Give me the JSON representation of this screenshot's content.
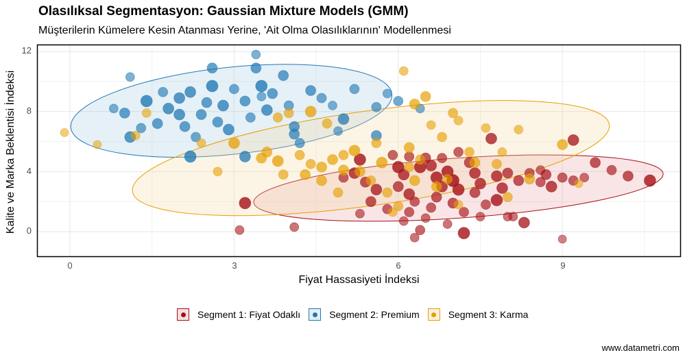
{
  "header": {
    "title": "Olasılıksal Segmentasyon: Gaussian Mixture Models (GMM)",
    "subtitle": "Müşterilerin Kümelere Kesin Atanması Yerine, 'Ait Olma Olasılıklarının' Modellenmesi"
  },
  "axes": {
    "xlabel": "Fiyat Hassasiyeti İndeksi",
    "ylabel": "Kalite ve Marka Beklentisi İndeksi",
    "xticks": [
      "0",
      "3",
      "6",
      "9"
    ],
    "yticks": [
      "0",
      "4",
      "8",
      "12"
    ]
  },
  "legend": {
    "items": [
      {
        "label": "Segment 1: Fiyat Odaklı",
        "color": "#A50F15",
        "fill": "#F6E0E1"
      },
      {
        "label": "Segment 2: Premium",
        "color": "#1F78B4",
        "fill": "#E6EEF6"
      },
      {
        "label": "Segment 3: Karma",
        "color": "#E69F00",
        "fill": "#FCF1DE"
      }
    ]
  },
  "footer": {
    "source": "www.datametri.com"
  },
  "chart_data": {
    "type": "scatter",
    "title": "Olasılıksal Segmentasyon: Gaussian Mixture Models (GMM)",
    "subtitle": "Müşterilerin Kümelere Kesin Atanması Yerine, 'Ait Olma Olasılıklarının' Modellenmesi",
    "xlabel": "Fiyat Hassasiyeti İndeksi",
    "ylabel": "Kalite ve Marka Beklentisi İndeksi",
    "xlim": [
      -0.6,
      11.2
    ],
    "ylim": [
      -1.7,
      12.4
    ],
    "xticks": [
      0,
      3,
      6,
      9
    ],
    "yticks": [
      0,
      4,
      8,
      12
    ],
    "grid": true,
    "legend_position": "bottom",
    "point_size_encodes": "membership probability (larger / more opaque = higher)",
    "ellipses": [
      {
        "segment": "Segment 1: Fiyat Odaklı",
        "cx": 7.1,
        "cy": 2.9,
        "rx": 3.75,
        "ry": 2.0,
        "angle_deg": -4,
        "color": "#A50F15"
      },
      {
        "segment": "Segment 2: Premium",
        "cx": 2.95,
        "cy": 8.05,
        "rx": 2.95,
        "ry": 2.9,
        "angle_deg": -6,
        "color": "#1F78B4"
      },
      {
        "segment": "Segment 3: Karma",
        "cx": 5.5,
        "cy": 4.9,
        "rx": 4.4,
        "ry": 3.15,
        "angle_deg": -8,
        "color": "#E69F00"
      }
    ],
    "series": [
      {
        "name": "Segment 1: Fiyat Odaklı",
        "color": "#A50F15",
        "points": [
          [
            3.2,
            1.9,
            0.9
          ],
          [
            3.1,
            0.1,
            0.5
          ],
          [
            4.1,
            0.3,
            0.5
          ],
          [
            5.3,
            4.8,
            0.9
          ],
          [
            5.2,
            3.9,
            0.8
          ],
          [
            5.4,
            3.3,
            0.7
          ],
          [
            5.6,
            2.8,
            0.8
          ],
          [
            5.5,
            2.0,
            0.7
          ],
          [
            5.3,
            1.2,
            0.5
          ],
          [
            5.8,
            1.5,
            0.6
          ],
          [
            6.0,
            4.3,
            0.9
          ],
          [
            6.1,
            3.8,
            0.8
          ],
          [
            6.0,
            3.0,
            0.7
          ],
          [
            6.2,
            2.5,
            0.8
          ],
          [
            6.3,
            2.0,
            0.6
          ],
          [
            6.2,
            1.3,
            0.6
          ],
          [
            6.1,
            0.7,
            0.5
          ],
          [
            6.4,
            0.1,
            0.6
          ],
          [
            6.3,
            -0.4,
            0.5
          ],
          [
            6.5,
            4.9,
            0.7
          ],
          [
            6.6,
            4.4,
            0.8
          ],
          [
            6.7,
            3.6,
            0.9
          ],
          [
            6.8,
            3.0,
            0.8
          ],
          [
            6.7,
            2.3,
            0.7
          ],
          [
            6.6,
            1.6,
            0.6
          ],
          [
            6.5,
            0.9,
            0.5
          ],
          [
            6.9,
            0.5,
            0.5
          ],
          [
            6.9,
            4.0,
            0.9
          ],
          [
            7.0,
            3.4,
            1.0
          ],
          [
            7.1,
            2.8,
            0.9
          ],
          [
            7.0,
            1.9,
            0.7
          ],
          [
            7.2,
            1.3,
            0.6
          ],
          [
            7.2,
            -0.1,
            0.9
          ],
          [
            7.3,
            4.6,
            0.7
          ],
          [
            7.4,
            3.9,
            0.8
          ],
          [
            7.5,
            3.2,
            0.8
          ],
          [
            7.4,
            2.6,
            0.7
          ],
          [
            7.6,
            1.8,
            0.6
          ],
          [
            7.5,
            1.0,
            0.5
          ],
          [
            7.7,
            6.2,
            0.8
          ],
          [
            7.8,
            3.7,
            0.8
          ],
          [
            7.9,
            2.9,
            0.8
          ],
          [
            7.8,
            2.1,
            0.9
          ],
          [
            8.0,
            3.9,
            0.7
          ],
          [
            8.0,
            1.0,
            0.5
          ],
          [
            8.2,
            3.4,
            0.7
          ],
          [
            8.3,
            0.6,
            0.8
          ],
          [
            8.4,
            3.9,
            0.6
          ],
          [
            8.6,
            3.3,
            0.6
          ],
          [
            8.7,
            3.8,
            0.7
          ],
          [
            8.8,
            3.0,
            0.8
          ],
          [
            9.0,
            3.6,
            0.6
          ],
          [
            9.2,
            6.1,
            0.8
          ],
          [
            9.2,
            3.4,
            0.6
          ],
          [
            9.6,
            4.6,
            0.7
          ],
          [
            9.9,
            4.1,
            0.6
          ],
          [
            10.2,
            3.7,
            0.7
          ],
          [
            10.6,
            3.4,
            0.9
          ],
          [
            9.0,
            -0.5,
            0.4
          ],
          [
            8.1,
            1.0,
            0.5
          ],
          [
            5.9,
            5.1,
            0.6
          ],
          [
            6.8,
            4.9,
            0.6
          ],
          [
            7.1,
            5.3,
            0.6
          ],
          [
            5.0,
            3.6,
            0.6
          ],
          [
            6.4,
            4.3,
            0.9
          ],
          [
            6.2,
            5.0,
            0.6
          ],
          [
            8.6,
            4.1,
            0.5
          ],
          [
            9.4,
            3.6,
            0.5
          ]
        ]
      },
      {
        "name": "Segment 2: Premium",
        "color": "#1F78B4",
        "points": [
          [
            1.1,
            10.3,
            0.5
          ],
          [
            0.8,
            8.2,
            0.5
          ],
          [
            1.0,
            7.9,
            0.7
          ],
          [
            1.4,
            8.7,
            0.9
          ],
          [
            1.1,
            6.3,
            0.8
          ],
          [
            1.6,
            7.2,
            0.7
          ],
          [
            1.8,
            8.2,
            0.8
          ],
          [
            2.1,
            7.0,
            0.7
          ],
          [
            2.3,
            6.3,
            0.6
          ],
          [
            2.0,
            8.9,
            0.8
          ],
          [
            2.2,
            9.3,
            0.8
          ],
          [
            2.5,
            8.6,
            0.7
          ],
          [
            2.4,
            7.8,
            0.7
          ],
          [
            2.2,
            5.0,
            0.9
          ],
          [
            2.8,
            8.4,
            0.8
          ],
          [
            2.7,
            7.3,
            0.7
          ],
          [
            3.0,
            9.5,
            0.6
          ],
          [
            2.9,
            6.8,
            0.8
          ],
          [
            3.2,
            8.7,
            0.7
          ],
          [
            3.3,
            7.6,
            0.6
          ],
          [
            3.4,
            11.8,
            0.5
          ],
          [
            3.4,
            10.9,
            0.7
          ],
          [
            3.5,
            9.7,
            0.9
          ],
          [
            3.6,
            8.1,
            0.8
          ],
          [
            3.7,
            9.2,
            0.7
          ],
          [
            3.9,
            10.4,
            0.7
          ],
          [
            4.0,
            8.4,
            0.6
          ],
          [
            4.1,
            7.0,
            0.7
          ],
          [
            4.2,
            5.9,
            0.6
          ],
          [
            4.4,
            9.4,
            0.7
          ],
          [
            4.6,
            8.9,
            0.6
          ],
          [
            4.8,
            8.4,
            0.5
          ],
          [
            5.0,
            7.5,
            0.8
          ],
          [
            5.2,
            9.5,
            0.6
          ],
          [
            5.6,
            8.3,
            0.6
          ],
          [
            5.8,
            9.2,
            0.5
          ],
          [
            6.0,
            8.7,
            0.6
          ],
          [
            5.6,
            6.4,
            0.7
          ],
          [
            3.2,
            5.0,
            0.8
          ],
          [
            2.6,
            10.9,
            0.7
          ],
          [
            1.7,
            9.3,
            0.6
          ],
          [
            2.0,
            7.8,
            0.8
          ],
          [
            2.6,
            9.7,
            0.9
          ],
          [
            3.5,
            9.0,
            0.5
          ],
          [
            4.1,
            6.5,
            0.7
          ],
          [
            4.9,
            6.7,
            0.5
          ],
          [
            6.4,
            8.2,
            0.5
          ],
          [
            1.3,
            6.9,
            0.6
          ]
        ]
      },
      {
        "name": "Segment 3: Karma",
        "color": "#E69F00",
        "points": [
          [
            -0.1,
            6.6,
            0.4
          ],
          [
            0.5,
            5.8,
            0.4
          ],
          [
            1.2,
            6.4,
            0.5
          ],
          [
            1.4,
            7.9,
            0.5
          ],
          [
            2.4,
            5.9,
            0.5
          ],
          [
            3.0,
            5.9,
            0.8
          ],
          [
            3.5,
            4.9,
            0.7
          ],
          [
            3.6,
            5.3,
            0.7
          ],
          [
            3.8,
            4.7,
            0.8
          ],
          [
            4.0,
            7.9,
            0.6
          ],
          [
            4.2,
            5.1,
            0.6
          ],
          [
            4.4,
            4.5,
            0.6
          ],
          [
            4.6,
            3.4,
            0.7
          ],
          [
            4.8,
            4.8,
            0.7
          ],
          [
            4.9,
            2.6,
            0.6
          ],
          [
            5.0,
            4.1,
            0.7
          ],
          [
            5.2,
            5.4,
            0.8
          ],
          [
            5.3,
            4.0,
            0.7
          ],
          [
            5.5,
            3.4,
            0.6
          ],
          [
            5.6,
            5.9,
            0.6
          ],
          [
            5.7,
            4.6,
            0.8
          ],
          [
            5.8,
            2.6,
            0.6
          ],
          [
            6.0,
            1.7,
            0.6
          ],
          [
            6.1,
            10.7,
            0.5
          ],
          [
            6.2,
            5.6,
            0.7
          ],
          [
            6.3,
            8.5,
            0.7
          ],
          [
            6.4,
            4.8,
            0.6
          ],
          [
            6.5,
            9.0,
            0.7
          ],
          [
            6.6,
            7.1,
            0.5
          ],
          [
            6.7,
            3.0,
            0.7
          ],
          [
            6.8,
            6.3,
            0.6
          ],
          [
            7.0,
            7.9,
            0.6
          ],
          [
            7.1,
            7.4,
            0.5
          ],
          [
            7.3,
            5.3,
            0.6
          ],
          [
            7.4,
            4.6,
            0.7
          ],
          [
            7.6,
            6.9,
            0.5
          ],
          [
            7.8,
            4.5,
            0.6
          ],
          [
            8.2,
            6.8,
            0.5
          ],
          [
            8.4,
            3.5,
            0.7
          ],
          [
            9.0,
            5.8,
            0.7
          ],
          [
            9.3,
            3.2,
            0.4
          ],
          [
            3.8,
            7.6,
            0.6
          ],
          [
            4.4,
            8.0,
            0.8
          ],
          [
            4.7,
            7.2,
            0.6
          ],
          [
            5.0,
            5.1,
            0.6
          ],
          [
            6.3,
            3.4,
            0.7
          ],
          [
            6.9,
            3.5,
            0.6
          ],
          [
            7.9,
            5.3,
            0.5
          ],
          [
            3.9,
            3.8,
            0.6
          ],
          [
            4.3,
            3.8,
            0.7
          ],
          [
            5.9,
            1.3,
            0.5
          ],
          [
            7.1,
            1.8,
            0.5
          ],
          [
            8.0,
            2.3,
            0.6
          ],
          [
            4.6,
            4.3,
            0.7
          ],
          [
            6.2,
            4.3,
            0.6
          ],
          [
            2.7,
            4.0,
            0.5
          ]
        ]
      }
    ]
  }
}
